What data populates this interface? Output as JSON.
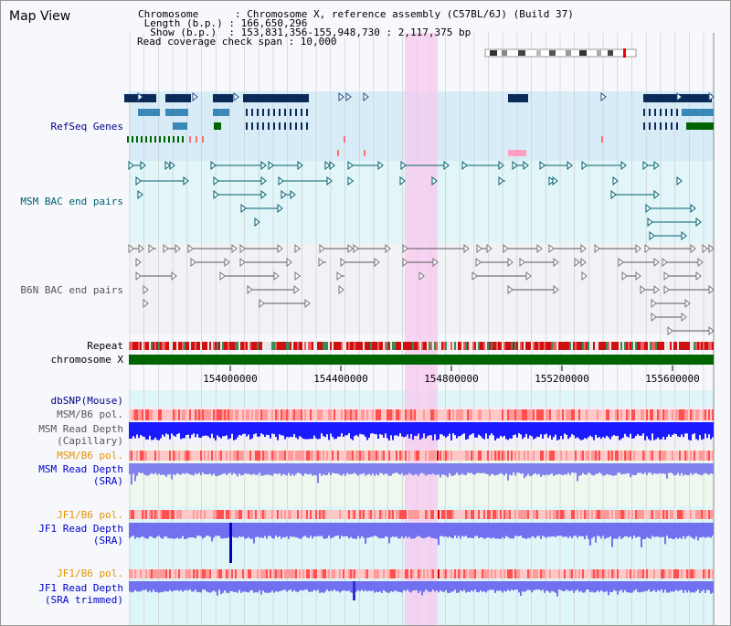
{
  "window": {
    "title": "Map View"
  },
  "info": {
    "chromosome_line": "Chromosome      : Chromosome X, reference assembly (C57BL/6J) (Build 37)",
    "length_line": " Length (b.p.) : 166,650,296",
    "show_line": "  Show (b.p.)  : 153,831,356-155,948,730 : 2,117,375 bp",
    "coverage_line": "Read coverage check span : 10,000"
  },
  "tracks": {
    "refseq": "RefSeq Genes",
    "msm_bac": "MSM BAC end pairs",
    "b6n_bac": "B6N BAC end pairs",
    "repeat": "Repeat",
    "chromosome": "chromosome X",
    "dbsnp": "dbSNP(Mouse)",
    "msm_b6_pol_1": "MSM/B6 pol.",
    "msm_depth_cap_1": "MSM Read Depth",
    "msm_depth_cap_2": "(Capillary)",
    "msm_b6_pol_2": "MSM/B6 pol.",
    "msm_depth_sra_1": "MSM Read Depth",
    "msm_depth_sra_2": "(SRA)",
    "jf1_b6_pol_1": "JF1/B6 pol.",
    "jf1_depth_sra_1": "JF1 Read Depth",
    "jf1_depth_sra_2": "(SRA)",
    "jf1_b6_pol_2": "JF1/B6 pol.",
    "jf1_depth_trim_1": "JF1 Read Depth",
    "jf1_depth_trim_2": "(SRA trimmed)"
  },
  "axis": {
    "ticks": [
      "154000000",
      "154400000",
      "154800000",
      "155200000",
      "155600000"
    ]
  },
  "colors": {
    "navy": "#00008b",
    "teal": "#006070",
    "gray": "#555555",
    "orange": "#e69500",
    "blue": "#0000cc",
    "highlight": "#f7c8ef",
    "refseq_bg": "#d8ecf8",
    "msm_bg": "#e2f5f8",
    "b6n_bg": "#f1f2f6",
    "green": "#006400",
    "depth_blue": "#7070f0"
  }
}
